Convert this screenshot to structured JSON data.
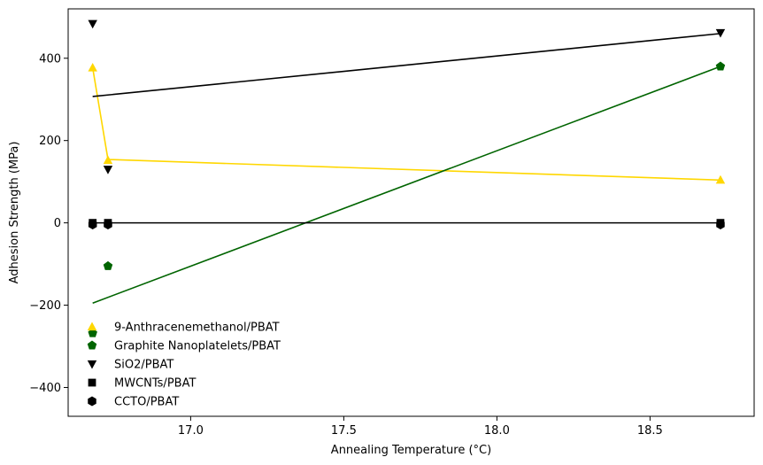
{
  "chart_data": {
    "type": "scatter",
    "xlabel": "Annealing Temperature (°C)",
    "ylabel": "Adhesion Strength (MPa)",
    "xlim": [
      16.6,
      18.84
    ],
    "ylim": [
      -470,
      520
    ],
    "xticks": [
      17.0,
      17.5,
      18.0,
      18.5
    ],
    "xtick_labels": [
      "17.0",
      "17.5",
      "18.0",
      "18.5"
    ],
    "yticks": [
      -400,
      -200,
      0,
      200,
      400
    ],
    "ytick_labels": [
      "−400",
      "−200",
      "0",
      "200",
      "400"
    ],
    "grid": false,
    "legend_position": "lower-left",
    "series": [
      {
        "name": "9-Anthracenemethanol/PBAT",
        "marker": "triangle-up",
        "color": "#FFD700",
        "points": [
          [
            16.68,
            377
          ],
          [
            16.73,
            152
          ],
          [
            18.73,
            104
          ]
        ],
        "fit_line": [
          [
            16.68,
            377
          ],
          [
            16.73,
            154
          ],
          [
            18.73,
            104
          ]
        ]
      },
      {
        "name": "Graphite Nanoplatelets/PBAT",
        "marker": "pentagon",
        "color": "#006400",
        "points": [
          [
            16.68,
            -268
          ],
          [
            16.73,
            -105
          ],
          [
            18.73,
            380
          ]
        ],
        "fit_line": [
          [
            16.68,
            -195
          ],
          [
            18.73,
            380
          ]
        ]
      },
      {
        "name": "SiO2/PBAT",
        "marker": "triangle-down",
        "color": "#000000",
        "points": [
          [
            16.68,
            484
          ],
          [
            16.73,
            130
          ],
          [
            18.73,
            462
          ]
        ],
        "fit_line": [
          [
            16.68,
            307
          ],
          [
            18.73,
            460
          ]
        ]
      },
      {
        "name": "MWCNTs/PBAT",
        "marker": "square",
        "color": "#000000",
        "points": [
          [
            16.68,
            0
          ],
          [
            16.73,
            0
          ],
          [
            18.73,
            0
          ]
        ],
        "fit_line": [
          [
            16.68,
            0
          ],
          [
            18.73,
            0
          ]
        ]
      },
      {
        "name": "CCTO/PBAT",
        "marker": "hexagon",
        "color": "#000000",
        "points": [
          [
            16.68,
            -4
          ],
          [
            16.73,
            -4
          ],
          [
            18.73,
            -4
          ]
        ],
        "fit_line": []
      }
    ]
  }
}
